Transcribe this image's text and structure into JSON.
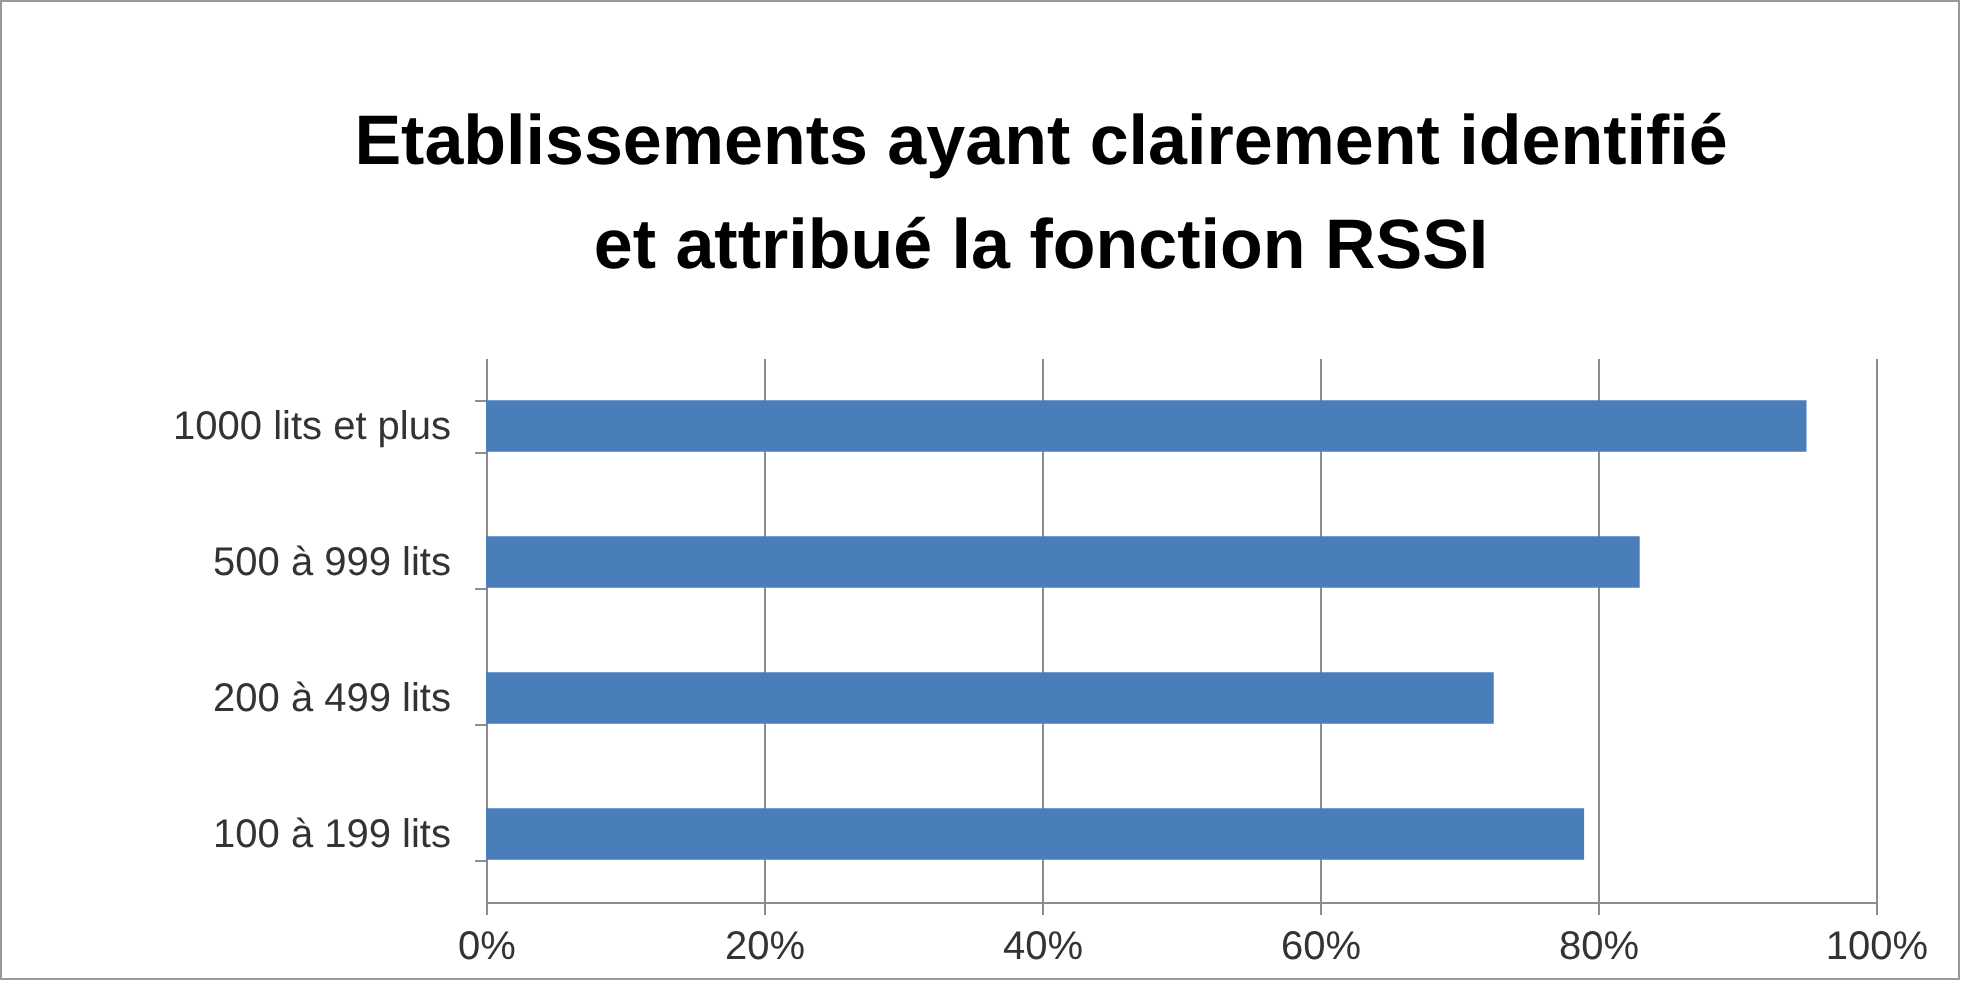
{
  "chart_data": {
    "type": "bar",
    "title": [
      "Etablissements ayant clairement identifié",
      "et attribué la fonction RSSI"
    ],
    "orientation": "horizontal",
    "categories": [
      "1000 lits  et plus",
      "500 à 999 lits",
      "200 à 499 lits",
      "100 à 199 lits"
    ],
    "values": [
      95,
      83,
      72.5,
      79
    ],
    "color": "#4a7ebb",
    "xlim": [
      0,
      100
    ],
    "xticks": [
      {
        "value": 0,
        "label": "0%"
      },
      {
        "value": 20,
        "label": "20%"
      },
      {
        "value": 40,
        "label": "40%"
      },
      {
        "value": 60,
        "label": "60%"
      },
      {
        "value": 80,
        "label": "80%"
      },
      {
        "value": 100,
        "label": "100%"
      }
    ],
    "grid": "x"
  }
}
